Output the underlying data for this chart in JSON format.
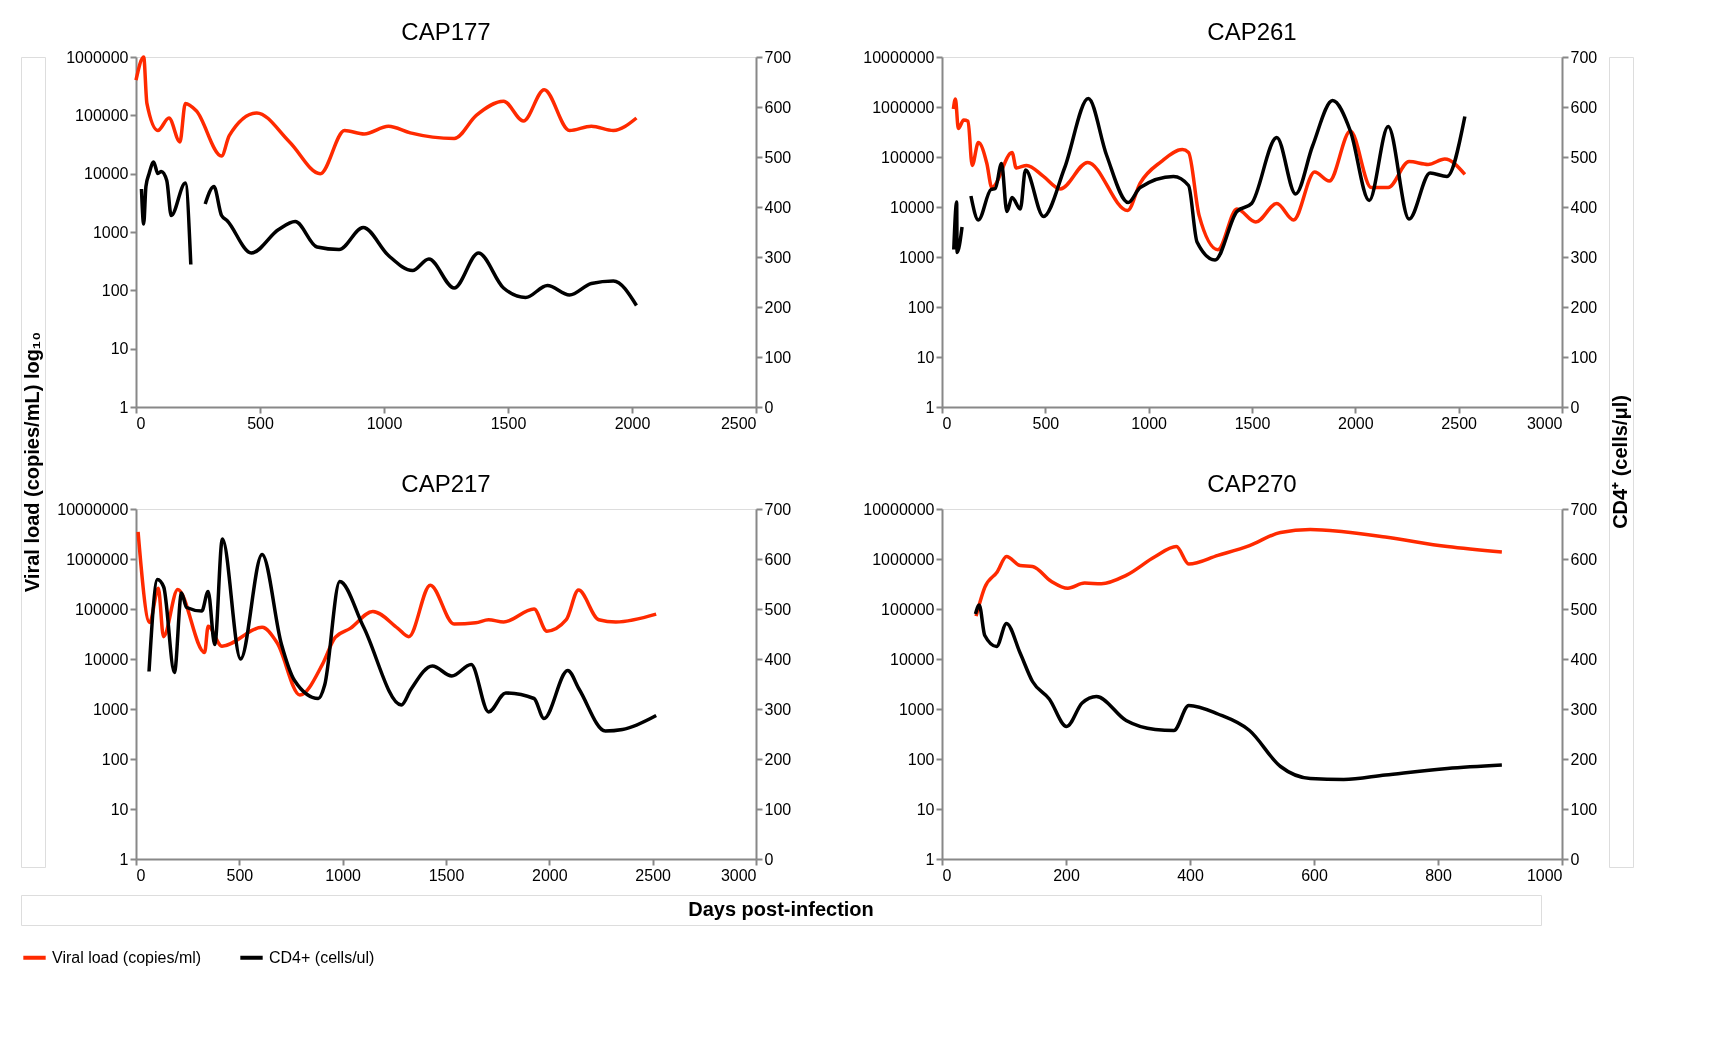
{
  "chart_data": [
    {
      "type": "line",
      "title": "CAP177",
      "xlabel": "Days post-infection",
      "ylabel": "Viral load (copies/mL) log₁₀",
      "y2label": "CD4⁺ (cells/μl)",
      "legend": "bottom",
      "log": "y",
      "xlim": [
        0,
        2500
      ],
      "xticks": [
        0,
        500,
        1000,
        1500,
        2000,
        2500
      ],
      "ylim": [
        1,
        1000000
      ],
      "yticks": [
        1,
        10,
        100,
        1000,
        10000,
        100000,
        1000000
      ],
      "y2lim": [
        0,
        700
      ],
      "y2ticks": [
        0,
        100,
        200,
        300,
        400,
        500,
        600,
        700
      ],
      "series": [
        {
          "name": "Viral load (copies/ml)",
          "color": "#ff2a00",
          "x": [
            0,
            31,
            44,
            88,
            133,
            177,
            199,
            243,
            345,
            376,
            487,
            619,
            743,
            841,
            920,
            1018,
            1106,
            1283,
            1372,
            1482,
            1562,
            1646,
            1748,
            1836,
            1925,
            2018
          ],
          "values": [
            400000,
            1000000,
            160000,
            55000,
            90000,
            35000,
            160000,
            120000,
            20000,
            45000,
            110000,
            35000,
            10000,
            55000,
            48000,
            65000,
            50000,
            40000,
            100000,
            175000,
            80000,
            275000,
            55000,
            65000,
            55000,
            90000
          ]
        },
        {
          "name": "CD4+ (cells/ul)",
          "color": "#000000",
          "axis": "y2",
          "x": [
            22,
            31,
            40,
            53,
            71,
            88,
            102,
            124,
            142,
            199,
            221,
            250,
            279,
            314,
            345,
            367,
            465,
            575,
            642,
            730,
            819,
            916,
            1018,
            1115,
            1181,
            1283,
            1381,
            1482,
            1571,
            1659,
            1748,
            1836,
            1925,
            2018
          ],
          "values": [
            436,
            366,
            441,
            467,
            490,
            467,
            471,
            453,
            383,
            448,
            285,
            null,
            406,
            441,
            383,
            373,
            308,
            355,
            371,
            320,
            315,
            359,
            303,
            273,
            296,
            238,
            308,
            238,
            219,
            243,
            224,
            247,
            252,
            203
          ]
        }
      ]
    },
    {
      "type": "line",
      "title": "CAP261",
      "log": "y",
      "xlim": [
        0,
        3000
      ],
      "xticks": [
        0,
        500,
        1000,
        1500,
        2000,
        2500,
        3000
      ],
      "ylim": [
        1,
        10000000
      ],
      "yticks": [
        1,
        10,
        100,
        1000,
        10000,
        100000,
        1000000,
        10000000
      ],
      "y2lim": [
        0,
        700
      ],
      "y2ticks": [
        0,
        100,
        200,
        300,
        400,
        500,
        600,
        700
      ],
      "series": [
        {
          "color": "#ff2a00",
          "x": [
            55,
            65,
            79,
            105,
            126,
            146,
            176,
            217,
            241,
            339,
            359,
            410,
            491,
            572,
            705,
            898,
            959,
            1061,
            1163,
            1193,
            1244,
            1335,
            1427,
            1518,
            1620,
            1701,
            1803,
            1874,
            1976,
            2077,
            2159,
            2260,
            2352,
            2433,
            2530
          ],
          "values": [
            910000,
            1450000,
            370000,
            550000,
            520000,
            68000,
            195000,
            74000,
            24500,
            123000,
            60000,
            68000,
            41000,
            23000,
            78000,
            8500,
            30000,
            81000,
            141000,
            123000,
            6800,
            1400,
            9100,
            5000,
            11700,
            5500,
            50000,
            33000,
            330000,
            24500,
            24500,
            81000,
            71000,
            91000,
            45000
          ]
        },
        {
          "color": "#000000",
          "axis": "y2",
          "x": [
            57,
            71,
            73,
            97,
            118,
            140,
            176,
            237,
            258,
            288,
            314,
            339,
            379,
            404,
            491,
            593,
            708,
            796,
            901,
            959,
            1120,
            1193,
            1234,
            1321,
            1427,
            1498,
            1620,
            1711,
            1793,
            1890,
            1976,
            2067,
            2159,
            2260,
            2362,
            2443,
            2530
          ],
          "values": [
            315,
            410,
            309,
            360,
            null,
            422,
            374,
            435,
            437,
            487,
            391,
            419,
            396,
            474,
            381,
            478,
            617,
            504,
            409,
            439,
            461,
            443,
            330,
            294,
            391,
            407,
            539,
            426,
            522,
            613,
            552,
            413,
            561,
            376,
            468,
            461,
            581
          ]
        }
      ]
    },
    {
      "type": "line",
      "title": "CAP217",
      "log": "y",
      "xlim": [
        0,
        3000
      ],
      "xticks": [
        0,
        500,
        1000,
        1500,
        2000,
        2500,
        3000
      ],
      "ylim": [
        1,
        10000000
      ],
      "yticks": [
        1,
        10,
        100,
        1000,
        10000,
        100000,
        1000000,
        10000000
      ],
      "y2lim": [
        0,
        700
      ],
      "y2ticks": [
        0,
        100,
        200,
        300,
        400,
        500,
        600,
        700
      ],
      "series": [
        {
          "color": "#ff2a00",
          "x": [
            10,
            66,
            108,
            133,
            202,
            332,
            349,
            416,
            610,
            683,
            793,
            902,
            964,
            1037,
            1146,
            1267,
            1320,
            1424,
            1539,
            1644,
            1706,
            1779,
            1926,
            1988,
            2082,
            2141,
            2239,
            2322,
            2517
          ],
          "values": [
            3500000,
            54000,
            260000,
            28000,
            245000,
            13500,
            45000,
            18000,
            43000,
            21000,
            1900,
            7800,
            27000,
            41000,
            89000,
            41000,
            28000,
            300000,
            50000,
            53000,
            61000,
            55000,
            100000,
            36000,
            61000,
            240000,
            61000,
            55000,
            79000
          ]
        },
        {
          "color": "#000000",
          "axis": "y2",
          "x": [
            63,
            104,
            134,
            186,
            220,
            245,
            318,
            349,
            381,
            418,
            506,
            610,
            704,
            767,
            882,
            913,
            986,
            1100,
            1284,
            1330,
            1434,
            1528,
            1622,
            1706,
            1789,
            1926,
            1974,
            2089,
            2145,
            2271,
            2354,
            2517
          ],
          "values": [
            375,
            559,
            544,
            373,
            532,
            503,
            496,
            535,
            429,
            640,
            400,
            609,
            429,
            357,
            321,
            348,
            555,
            465,
            308,
            339,
            386,
            366,
            389,
            294,
            332,
            321,
            281,
            377,
            339,
            256,
            259,
            287
          ]
        }
      ]
    },
    {
      "type": "line",
      "title": "CAP270",
      "log": "y",
      "xlim": [
        0,
        1000
      ],
      "xticks": [
        0,
        200,
        400,
        600,
        800,
        1000
      ],
      "ylim": [
        1,
        10000000
      ],
      "yticks": [
        1,
        10,
        100,
        1000,
        10000,
        100000,
        1000000,
        10000000
      ],
      "y2lim": [
        0,
        700
      ],
      "y2ticks": [
        0,
        100,
        200,
        300,
        400,
        500,
        600,
        700
      ],
      "series": [
        {
          "color": "#ff2a00",
          "x": [
            55,
            69,
            89,
            104,
            126,
            146,
            176,
            203,
            230,
            257,
            297,
            344,
            378,
            398,
            445,
            496,
            546,
            594,
            648,
            715,
            815,
            903
          ],
          "values": [
            72000,
            270000,
            550000,
            1120000,
            740000,
            710000,
            360000,
            260000,
            330000,
            320000,
            470000,
            1120000,
            1770000,
            790000,
            1180000,
            1860000,
            3400000,
            3900000,
            3500000,
            2750000,
            1770000,
            1380000
          ]
        },
        {
          "color": "#000000",
          "axis": "y2",
          "x": [
            54,
            60,
            69,
            88,
            104,
            126,
            146,
            173,
            201,
            226,
            249,
            297,
            344,
            374,
            398,
            445,
            496,
            546,
            594,
            648,
            715,
            815,
            903
          ],
          "values": [
            490,
            508,
            447,
            425,
            471,
            412,
            355,
            320,
            265,
            312,
            325,
            277,
            259,
            257,
            307,
            290,
            257,
            185,
            161,
            159,
            168,
            181,
            188
          ]
        }
      ]
    }
  ]
}
